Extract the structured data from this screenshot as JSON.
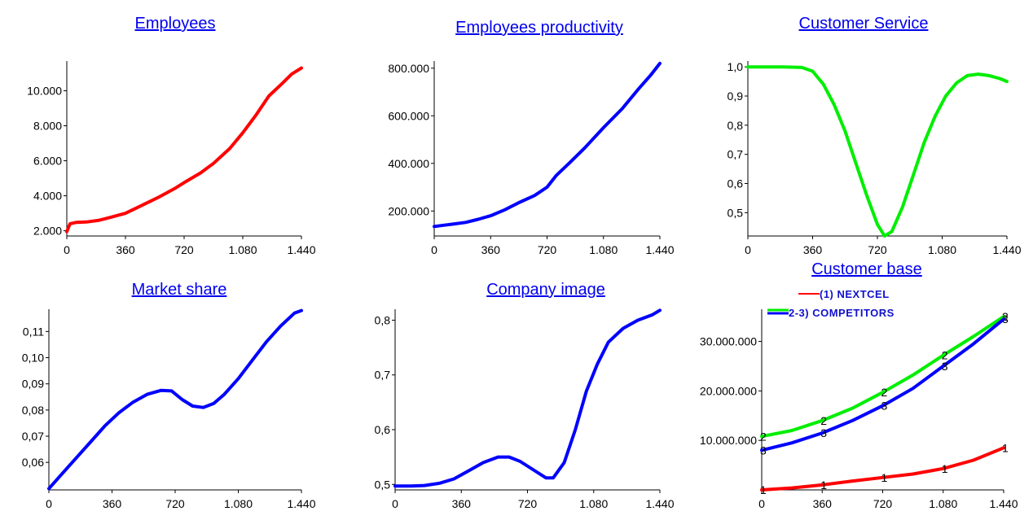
{
  "chart_data": [
    {
      "type": "line",
      "title": "Employees",
      "x_ticks": [
        "0",
        "360",
        "720",
        "1.080",
        "1.440"
      ],
      "y_ticks": [
        "2.000",
        "4.000",
        "6.000",
        "8.000",
        "10.000"
      ],
      "xlim": [
        0,
        1440
      ],
      "ylim": [
        1700,
        11700
      ],
      "series": [
        {
          "color": "#ff0000",
          "points": [
            [
              0,
              1950
            ],
            [
              20,
              2400
            ],
            [
              60,
              2480
            ],
            [
              120,
              2500
            ],
            [
              200,
              2600
            ],
            [
              280,
              2800
            ],
            [
              360,
              3000
            ],
            [
              460,
              3450
            ],
            [
              560,
              3900
            ],
            [
              660,
              4400
            ],
            [
              720,
              4750
            ],
            [
              820,
              5300
            ],
            [
              900,
              5850
            ],
            [
              1000,
              6700
            ],
            [
              1080,
              7600
            ],
            [
              1160,
              8600
            ],
            [
              1240,
              9700
            ],
            [
              1320,
              10400
            ],
            [
              1380,
              10950
            ],
            [
              1440,
              11300
            ]
          ]
        }
      ]
    },
    {
      "type": "line",
      "title": "Employees productivity",
      "x_ticks": [
        "0",
        "360",
        "720",
        "1.080",
        "1.440"
      ],
      "y_ticks": [
        "200.000",
        "400.000",
        "600.000",
        "800.000"
      ],
      "xlim": [
        0,
        1440
      ],
      "ylim": [
        95000,
        830000
      ],
      "series": [
        {
          "color": "#0000ff",
          "points": [
            [
              0,
              135000
            ],
            [
              60,
              140000
            ],
            [
              120,
              145000
            ],
            [
              200,
              152000
            ],
            [
              280,
              165000
            ],
            [
              360,
              180000
            ],
            [
              450,
              205000
            ],
            [
              540,
              235000
            ],
            [
              640,
              265000
            ],
            [
              720,
              300000
            ],
            [
              780,
              350000
            ],
            [
              860,
              400000
            ],
            [
              960,
              465000
            ],
            [
              1080,
              550000
            ],
            [
              1200,
              630000
            ],
            [
              1300,
              710000
            ],
            [
              1380,
              770000
            ],
            [
              1440,
              820000
            ]
          ]
        }
      ]
    },
    {
      "type": "line",
      "title": "Customer Service",
      "x_ticks": [
        "0",
        "360",
        "720",
        "1.080",
        "1.440"
      ],
      "y_ticks": [
        "0,5",
        "0,6",
        "0,7",
        "0,8",
        "0,9",
        "1,0"
      ],
      "xlim": [
        0,
        1440
      ],
      "ylim": [
        0.42,
        1.02
      ],
      "series": [
        {
          "color": "#00ee00",
          "points": [
            [
              0,
              1.0
            ],
            [
              100,
              1.0
            ],
            [
              200,
              1.0
            ],
            [
              300,
              0.998
            ],
            [
              360,
              0.985
            ],
            [
              420,
              0.94
            ],
            [
              480,
              0.87
            ],
            [
              540,
              0.78
            ],
            [
              600,
              0.67
            ],
            [
              660,
              0.56
            ],
            [
              720,
              0.46
            ],
            [
              760,
              0.42
            ],
            [
              800,
              0.435
            ],
            [
              860,
              0.52
            ],
            [
              920,
              0.63
            ],
            [
              980,
              0.74
            ],
            [
              1040,
              0.83
            ],
            [
              1100,
              0.9
            ],
            [
              1160,
              0.945
            ],
            [
              1220,
              0.97
            ],
            [
              1280,
              0.975
            ],
            [
              1340,
              0.97
            ],
            [
              1400,
              0.96
            ],
            [
              1440,
              0.95
            ]
          ]
        }
      ]
    },
    {
      "type": "line",
      "title": "Market share",
      "x_ticks": [
        "0",
        "360",
        "720",
        "1.080",
        "1.440"
      ],
      "y_ticks": [
        "0,06",
        "0,07",
        "0,08",
        "0,09",
        "0,10",
        "0,11"
      ],
      "xlim": [
        0,
        1440
      ],
      "ylim": [
        0.0495,
        0.1185
      ],
      "series": [
        {
          "color": "#0000ff",
          "points": [
            [
              0,
              0.05
            ],
            [
              80,
              0.056
            ],
            [
              160,
              0.062
            ],
            [
              240,
              0.068
            ],
            [
              320,
              0.074
            ],
            [
              400,
              0.079
            ],
            [
              480,
              0.083
            ],
            [
              560,
              0.086
            ],
            [
              640,
              0.0875
            ],
            [
              700,
              0.0873
            ],
            [
              760,
              0.084
            ],
            [
              820,
              0.0815
            ],
            [
              880,
              0.081
            ],
            [
              940,
              0.0825
            ],
            [
              1000,
              0.086
            ],
            [
              1080,
              0.092
            ],
            [
              1160,
              0.099
            ],
            [
              1240,
              0.106
            ],
            [
              1320,
              0.112
            ],
            [
              1400,
              0.117
            ],
            [
              1440,
              0.118
            ]
          ]
        }
      ]
    },
    {
      "type": "line",
      "title": "Company image",
      "x_ticks": [
        "0",
        "360",
        "720",
        "1.080",
        "1.440"
      ],
      "y_ticks": [
        "0,5",
        "0,6",
        "0,7",
        "0,8"
      ],
      "xlim": [
        0,
        1440
      ],
      "ylim": [
        0.49,
        0.82
      ],
      "series": [
        {
          "color": "#0000ff",
          "points": [
            [
              0,
              0.497
            ],
            [
              80,
              0.497
            ],
            [
              160,
              0.498
            ],
            [
              240,
              0.502
            ],
            [
              320,
              0.51
            ],
            [
              400,
              0.525
            ],
            [
              480,
              0.54
            ],
            [
              560,
              0.55
            ],
            [
              620,
              0.55
            ],
            [
              680,
              0.542
            ],
            [
              760,
              0.525
            ],
            [
              820,
              0.512
            ],
            [
              860,
              0.512
            ],
            [
              920,
              0.54
            ],
            [
              980,
              0.6
            ],
            [
              1040,
              0.67
            ],
            [
              1100,
              0.72
            ],
            [
              1160,
              0.76
            ],
            [
              1240,
              0.785
            ],
            [
              1320,
              0.8
            ],
            [
              1400,
              0.81
            ],
            [
              1440,
              0.818
            ]
          ]
        }
      ]
    },
    {
      "type": "line",
      "title": "Customer base",
      "legend": [
        "(1) NEXTCEL",
        "2-3) COMPETITORS"
      ],
      "x_ticks": [
        "0",
        "360",
        "720",
        "1.080",
        "1.440"
      ],
      "y_ticks": [
        "10.000.000",
        "20.000.000",
        "30.000.000"
      ],
      "xlim": [
        0,
        1440
      ],
      "ylim": [
        0,
        36500000
      ],
      "series": [
        {
          "color": "#ff0000",
          "marker": "1",
          "points": [
            [
              0,
              0
            ],
            [
              180,
              400000
            ],
            [
              360,
              1000000
            ],
            [
              540,
              1800000
            ],
            [
              720,
              2500000
            ],
            [
              900,
              3200000
            ],
            [
              1080,
              4300000
            ],
            [
              1260,
              6000000
            ],
            [
              1440,
              8500000
            ]
          ]
        },
        {
          "color": "#00ee00",
          "marker": "2",
          "points": [
            [
              0,
              10800000
            ],
            [
              180,
              12000000
            ],
            [
              360,
              14000000
            ],
            [
              540,
              16500000
            ],
            [
              720,
              19700000
            ],
            [
              900,
              23200000
            ],
            [
              1080,
              27200000
            ],
            [
              1260,
              31000000
            ],
            [
              1440,
              35000000
            ]
          ]
        },
        {
          "color": "#0000ff",
          "marker": "3",
          "points": [
            [
              0,
              8000000
            ],
            [
              180,
              9500000
            ],
            [
              360,
              11500000
            ],
            [
              540,
              14000000
            ],
            [
              720,
              17000000
            ],
            [
              900,
              20500000
            ],
            [
              1080,
              25000000
            ],
            [
              1260,
              29500000
            ],
            [
              1440,
              34500000
            ]
          ]
        }
      ]
    }
  ]
}
